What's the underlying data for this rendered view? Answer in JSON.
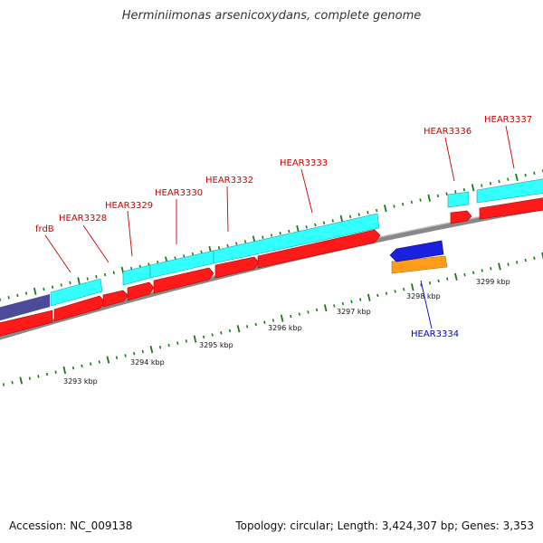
{
  "title": "Herminiimonas arsenicoxydans, complete genome",
  "footer": {
    "accession": "Accession: NC_009138",
    "summary": "Topology: circular; Length: 3,424,307 bp; Genes: 3,353"
  },
  "colors": {
    "forward_cds": "#ff1a1a",
    "reverse_cds": "#1a22e0",
    "forward_feature": "#33ffff",
    "reverse_feature": "#ff9d1a",
    "other_feature": "#4b4b99",
    "backbone": "#888888",
    "tick": "#1a7a1a",
    "label_forward": "#cc0000",
    "label_reverse": "#0000cc"
  },
  "kbp_labels": [
    "3293 kbp",
    "3294 kbp",
    "3295 kbp",
    "3296 kbp",
    "3297 kbp",
    "3298 kbp",
    "3299 kbp"
  ],
  "gene_labels": [
    {
      "name": "frdB",
      "strand": "forward"
    },
    {
      "name": "HEAR3328",
      "strand": "forward"
    },
    {
      "name": "HEAR3329",
      "strand": "forward"
    },
    {
      "name": "HEAR3330",
      "strand": "forward"
    },
    {
      "name": "HEAR3332",
      "strand": "forward"
    },
    {
      "name": "HEAR3333",
      "strand": "forward"
    },
    {
      "name": "HEAR3334",
      "strand": "reverse"
    },
    {
      "name": "HEAR3336",
      "strand": "forward"
    },
    {
      "name": "HEAR3337",
      "strand": "forward"
    }
  ]
}
